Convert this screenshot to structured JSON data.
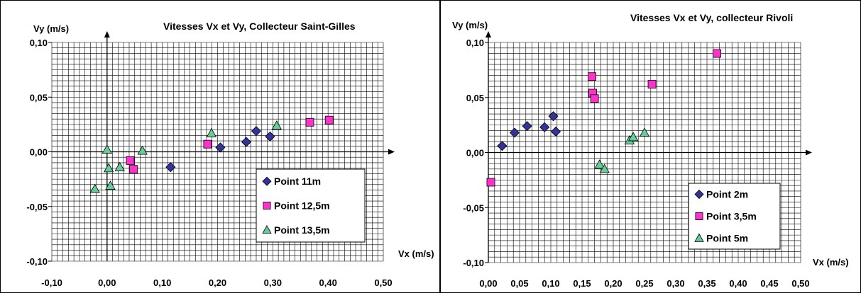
{
  "chart_data": [
    {
      "type": "scatter",
      "title": "Vitesses Vx et Vy, Collecteur Saint-Gilles",
      "xlabel": "Vx (m/s)",
      "ylabel": "Vy (m/s)",
      "xlim": [
        -0.1,
        0.5
      ],
      "ylim": [
        -0.1,
        0.1
      ],
      "xticks": [
        "-0,10",
        "0,00",
        "0,10",
        "0,20",
        "0,30",
        "0,40",
        "0,50"
      ],
      "yticks": [
        "0,10",
        "0,05",
        "0,00",
        "-0,05",
        "-0,10"
      ],
      "grid": true,
      "legend_position": "bottom-right",
      "series": [
        {
          "name": "Point 11m",
          "marker": "diamond",
          "color": "#333399",
          "points": [
            [
              0.115,
              -0.014
            ],
            [
              0.205,
              0.004
            ],
            [
              0.252,
              0.009
            ],
            [
              0.27,
              0.019
            ],
            [
              0.295,
              0.014
            ]
          ]
        },
        {
          "name": "Point 12,5m",
          "marker": "square",
          "color": "#FF33CC",
          "points": [
            [
              0.042,
              -0.008
            ],
            [
              0.048,
              -0.016
            ],
            [
              0.182,
              0.007
            ],
            [
              0.367,
              0.027
            ],
            [
              0.402,
              0.029
            ]
          ]
        },
        {
          "name": "Point 13,5m",
          "marker": "triangle",
          "color": "#66CC99",
          "points": [
            [
              -0.022,
              -0.034
            ],
            [
              0.0,
              0.002
            ],
            [
              0.003,
              -0.015
            ],
            [
              0.006,
              -0.031
            ],
            [
              0.023,
              -0.014
            ],
            [
              0.064,
              0.001
            ],
            [
              0.189,
              0.017
            ],
            [
              0.307,
              0.024
            ]
          ]
        }
      ]
    },
    {
      "type": "scatter",
      "title": "Vitesses Vx et Vy, collecteur Rivoli",
      "xlabel": "Vx (m/s)",
      "ylabel": "Vy (m/s)",
      "xlim": [
        0.0,
        0.5
      ],
      "ylim": [
        -0.1,
        0.1
      ],
      "xticks": [
        "0,00",
        "0,05",
        "0,10",
        "0,15",
        "0,20",
        "0,25",
        "0,30",
        "0,35",
        "0,40",
        "0,45",
        "0,50"
      ],
      "yticks": [
        "0,10",
        "0,05",
        "0,00",
        "-0,05",
        "-0,10"
      ],
      "grid": true,
      "legend_position": "bottom-right",
      "series": [
        {
          "name": "Point 2m",
          "marker": "diamond",
          "color": "#333399",
          "points": [
            [
              0.022,
              0.006
            ],
            [
              0.042,
              0.018
            ],
            [
              0.062,
              0.024
            ],
            [
              0.09,
              0.023
            ],
            [
              0.104,
              0.033
            ],
            [
              0.108,
              0.019
            ]
          ]
        },
        {
          "name": "Point 3,5m",
          "marker": "square",
          "color": "#FF33CC",
          "points": [
            [
              0.004,
              -0.027
            ],
            [
              0.166,
              0.069
            ],
            [
              0.167,
              0.054
            ],
            [
              0.17,
              0.049
            ],
            [
              0.262,
              0.062
            ],
            [
              0.366,
              0.09
            ]
          ]
        },
        {
          "name": "Point 5m",
          "marker": "triangle",
          "color": "#66CC99",
          "points": [
            [
              0.178,
              -0.011
            ],
            [
              0.186,
              -0.015
            ],
            [
              0.226,
              0.011
            ],
            [
              0.232,
              0.014
            ],
            [
              0.25,
              0.018
            ]
          ]
        }
      ]
    }
  ]
}
